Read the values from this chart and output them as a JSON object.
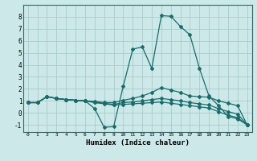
{
  "xlabel": "Humidex (Indice chaleur)",
  "background_color": "#cce8e8",
  "grid_color": "#aacccc",
  "line_color": "#1a6b6b",
  "xlim": [
    -0.5,
    23.5
  ],
  "ylim": [
    -1.6,
    9.0
  ],
  "xticks": [
    0,
    1,
    2,
    3,
    4,
    5,
    6,
    7,
    8,
    9,
    10,
    11,
    12,
    13,
    14,
    15,
    16,
    17,
    18,
    19,
    20,
    21,
    22,
    23
  ],
  "yticks": [
    -1,
    0,
    1,
    2,
    3,
    4,
    5,
    6,
    7,
    8
  ],
  "lines": [
    {
      "x": [
        0,
        1,
        2,
        3,
        4,
        5,
        6,
        7,
        8,
        9,
        10,
        11,
        12,
        13,
        14,
        15,
        16,
        17,
        18,
        19,
        20,
        21,
        22,
        23
      ],
      "y": [
        0.85,
        0.85,
        1.35,
        1.2,
        1.1,
        1.05,
        1.0,
        0.35,
        -1.2,
        -1.15,
        2.2,
        5.3,
        5.5,
        3.7,
        8.1,
        8.05,
        7.2,
        6.5,
        3.7,
        1.4,
        0.6,
        -0.3,
        -0.5,
        -1.0
      ]
    },
    {
      "x": [
        0,
        1,
        2,
        3,
        4,
        5,
        6,
        7,
        8,
        9,
        10,
        11,
        12,
        13,
        14,
        15,
        16,
        17,
        18,
        19,
        20,
        21,
        22,
        23
      ],
      "y": [
        0.85,
        0.85,
        1.35,
        1.2,
        1.1,
        1.05,
        1.0,
        0.95,
        0.85,
        0.85,
        1.05,
        1.2,
        1.4,
        1.7,
        2.1,
        1.9,
        1.7,
        1.4,
        1.35,
        1.3,
        1.0,
        0.8,
        0.6,
        -1.0
      ]
    },
    {
      "x": [
        0,
        1,
        2,
        3,
        4,
        5,
        6,
        7,
        8,
        9,
        10,
        11,
        12,
        13,
        14,
        15,
        16,
        17,
        18,
        19,
        20,
        21,
        22,
        23
      ],
      "y": [
        0.85,
        0.85,
        1.35,
        1.2,
        1.1,
        1.05,
        1.0,
        0.9,
        0.8,
        0.7,
        0.85,
        0.9,
        1.0,
        1.1,
        1.2,
        1.1,
        1.0,
        0.85,
        0.75,
        0.65,
        0.35,
        0.1,
        -0.1,
        -1.0
      ]
    },
    {
      "x": [
        0,
        1,
        2,
        3,
        4,
        5,
        6,
        7,
        8,
        9,
        10,
        11,
        12,
        13,
        14,
        15,
        16,
        17,
        18,
        19,
        20,
        21,
        22,
        23
      ],
      "y": [
        0.85,
        0.85,
        1.35,
        1.2,
        1.1,
        1.05,
        1.0,
        0.85,
        0.75,
        0.65,
        0.7,
        0.75,
        0.8,
        0.85,
        0.9,
        0.8,
        0.7,
        0.6,
        0.5,
        0.4,
        0.1,
        -0.2,
        -0.4,
        -1.0
      ]
    }
  ]
}
